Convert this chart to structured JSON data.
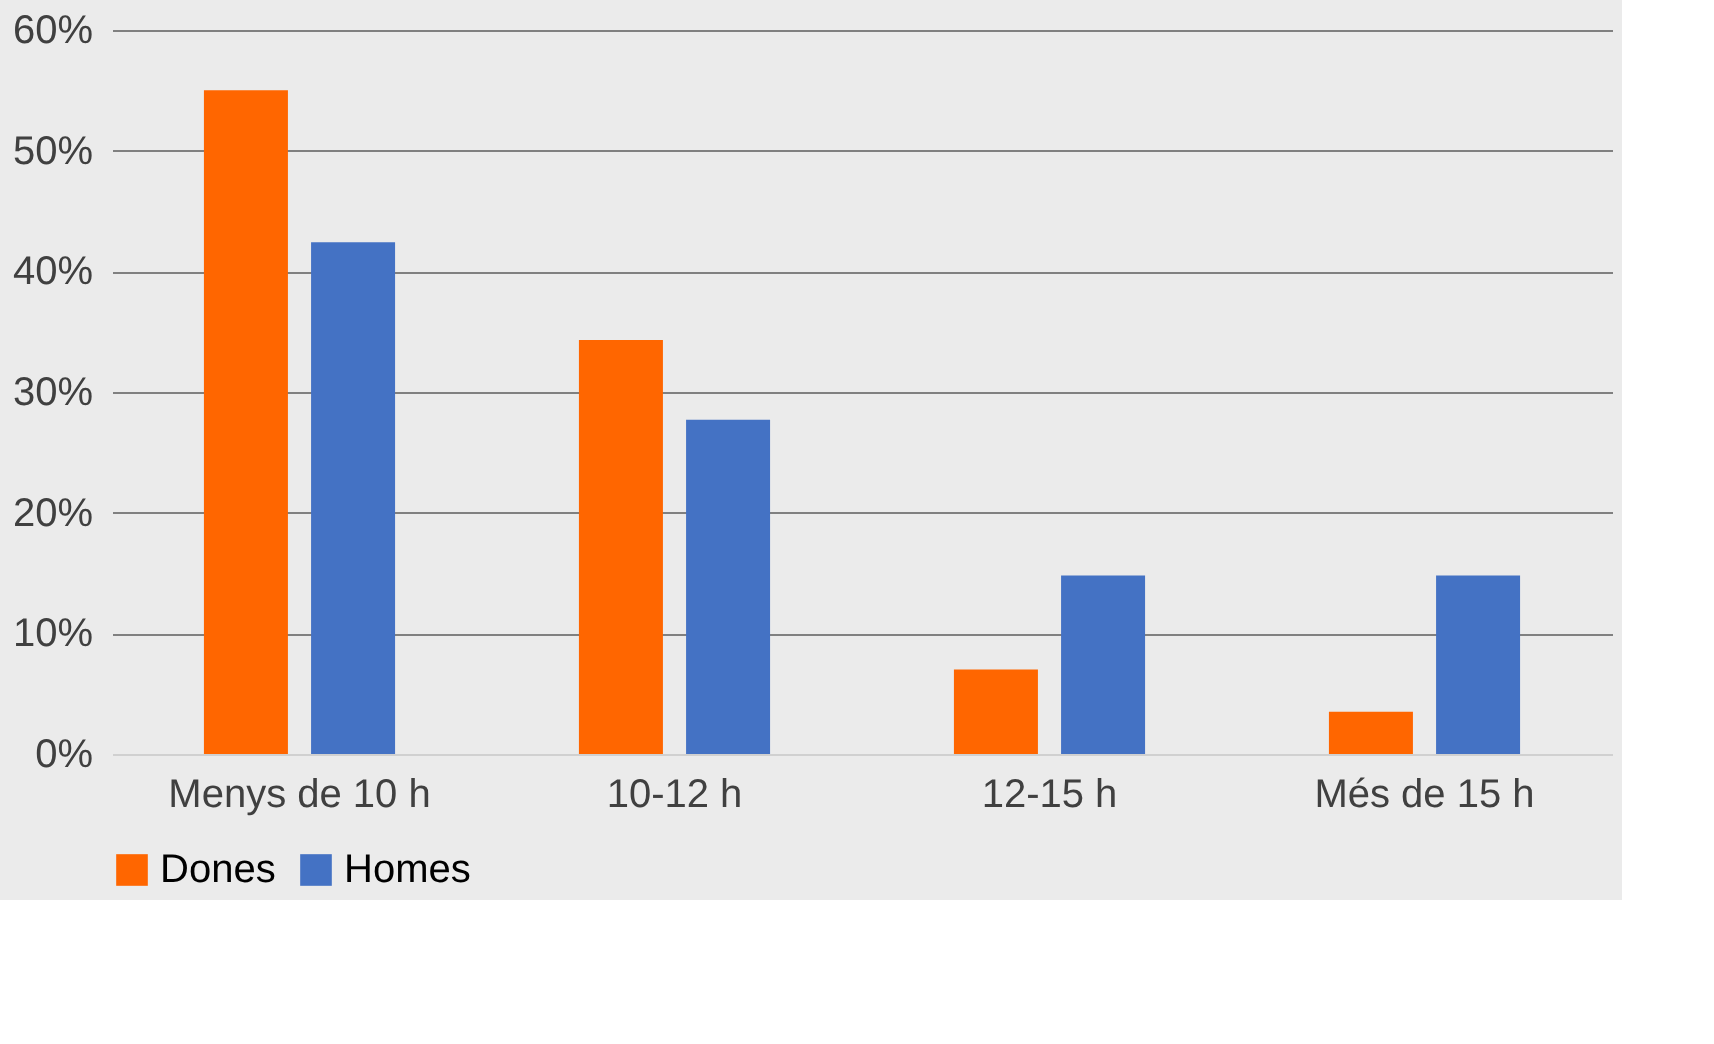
{
  "chart_data": {
    "type": "bar",
    "categories": [
      "Menys de 10 h",
      "10-12 h",
      "12-15 h",
      "Més de 15 h"
    ],
    "series": [
      {
        "name": "Dones",
        "color": "#ff6600",
        "values": [
          55,
          34.3,
          7,
          3.5
        ]
      },
      {
        "name": "Homes",
        "color": "#4472c4",
        "values": [
          42.4,
          27.7,
          14.8,
          14.8
        ]
      }
    ],
    "ylim": [
      0,
      60
    ],
    "yticks": [
      {
        "value": 0,
        "label": "0%"
      },
      {
        "value": 10,
        "label": "10%"
      },
      {
        "value": 20,
        "label": "20%"
      },
      {
        "value": 30,
        "label": "30%"
      },
      {
        "value": 40,
        "label": "40%"
      },
      {
        "value": 50,
        "label": "50%"
      },
      {
        "value": 60,
        "label": "60%"
      }
    ],
    "grid": "y",
    "legend": "bottom"
  }
}
